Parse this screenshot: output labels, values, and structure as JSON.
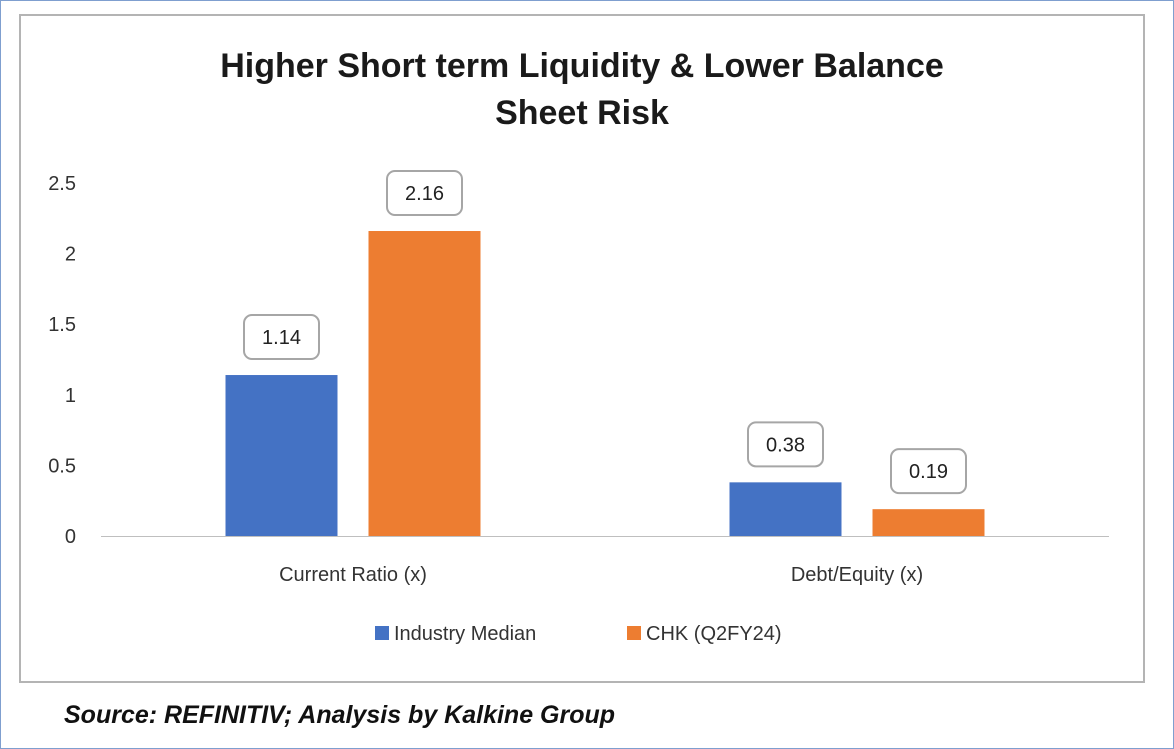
{
  "chart_data": {
    "type": "bar",
    "title_lines": [
      "Higher Short term Liquidity & Lower Balance",
      "Sheet Risk"
    ],
    "categories": [
      "Current Ratio (x)",
      "Debt/Equity (x)"
    ],
    "series": [
      {
        "name": "Industry Median",
        "values": [
          1.14,
          0.38
        ],
        "labels": [
          "1.14",
          "0.38"
        ],
        "color": "#4472c4"
      },
      {
        "name": "CHK (Q2FY24)",
        "values": [
          2.16,
          0.19
        ],
        "labels": [
          "2.16",
          "0.19"
        ],
        "color": "#ed7d31"
      }
    ],
    "yticks": [
      "0",
      "0.5",
      "1",
      "1.5",
      "2",
      "2.5"
    ],
    "ylim": [
      0,
      2.5
    ],
    "grid": false,
    "legend_position": "bottom"
  },
  "source_text": "Source: REFINITIV; Analysis by Kalkine Group"
}
